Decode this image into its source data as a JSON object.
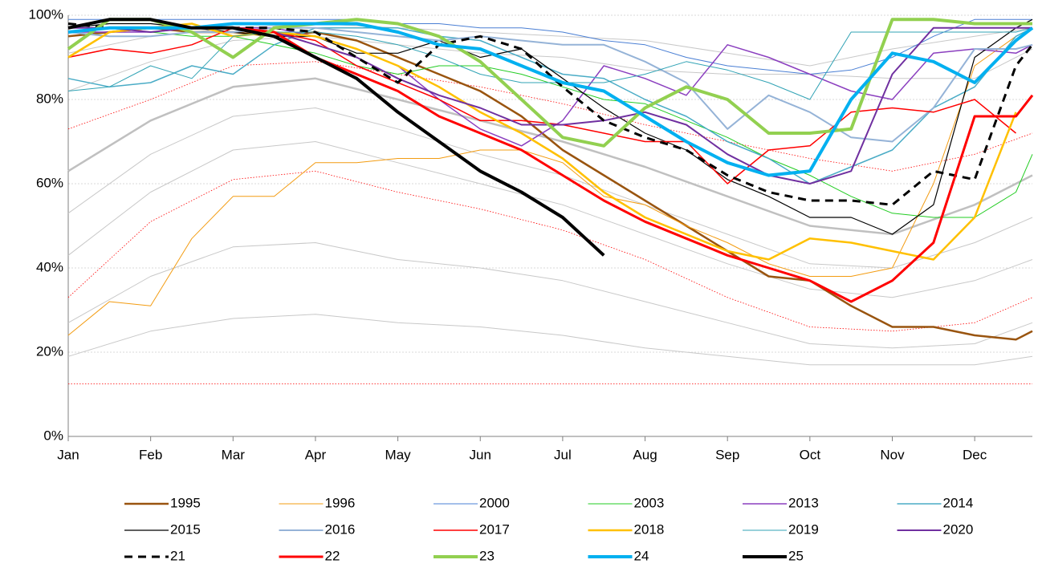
{
  "chart_data": {
    "type": "line",
    "x": [
      0,
      0.5,
      1,
      1.5,
      2,
      2.5,
      3,
      3.5,
      4,
      4.5,
      5,
      5.5,
      6,
      6.5,
      7,
      7.5,
      8,
      8.5,
      9,
      9.5,
      10,
      10.5,
      11,
      11.5,
      11.7
    ],
    "xlim": [
      0,
      11.7
    ],
    "xticks": [
      {
        "value": 0,
        "label": "Jan"
      },
      {
        "value": 1,
        "label": "Feb"
      },
      {
        "value": 2,
        "label": "Mar"
      },
      {
        "value": 3,
        "label": "Apr"
      },
      {
        "value": 4,
        "label": "May"
      },
      {
        "value": 5,
        "label": "Jun"
      },
      {
        "value": 6,
        "label": "Jul"
      },
      {
        "value": 7,
        "label": "Aug"
      },
      {
        "value": 8,
        "label": "Sep"
      },
      {
        "value": 9,
        "label": "Oct"
      },
      {
        "value": 10,
        "label": "Nov"
      },
      {
        "value": 11,
        "label": "Dec"
      }
    ],
    "ylim": [
      0,
      100
    ],
    "yticks": [
      {
        "value": 0,
        "label": "0%"
      },
      {
        "value": 20,
        "label": "20%"
      },
      {
        "value": 40,
        "label": "40%"
      },
      {
        "value": 60,
        "label": "60%"
      },
      {
        "value": 80,
        "label": "80%"
      },
      {
        "value": 100,
        "label": "100%"
      }
    ],
    "grid": true,
    "legend": "bottom",
    "series": [
      {
        "color": "#c8c8c8",
        "width": 1,
        "x": [
          0,
          1,
          2,
          3,
          4,
          5,
          6,
          7,
          8,
          9,
          10,
          11,
          11.7
        ],
        "values": [
          91,
          95,
          97,
          98,
          97,
          96,
          95,
          94,
          91,
          88,
          92,
          95,
          97
        ]
      },
      {
        "color": "#c8c8c8",
        "width": 1,
        "x": [
          0,
          1,
          2,
          3,
          4,
          5,
          6,
          7,
          8,
          9,
          10,
          11,
          11.7
        ],
        "values": [
          82,
          89,
          94,
          95,
          93,
          91,
          90,
          87,
          86,
          86,
          85,
          85,
          92
        ]
      },
      {
        "color": "#c0c0c0",
        "width": 2.5,
        "x": [
          0,
          1,
          2,
          3,
          4,
          5,
          6,
          7,
          8,
          9,
          10,
          11,
          11.7
        ],
        "values": [
          63,
          75,
          83,
          85,
          80,
          75,
          70,
          64,
          57,
          50,
          48,
          55,
          62
        ]
      },
      {
        "color": "#c8c8c8",
        "width": 1,
        "x": [
          0,
          1,
          2,
          3,
          4,
          5,
          6,
          7,
          8,
          9,
          10,
          11,
          11.7
        ],
        "values": [
          53,
          67,
          76,
          78,
          73,
          67,
          62,
          55,
          48,
          41,
          40,
          46,
          52
        ]
      },
      {
        "color": "#c8c8c8",
        "width": 1,
        "x": [
          0,
          1,
          2,
          3,
          4,
          5,
          6,
          7,
          8,
          9,
          10,
          11,
          11.7
        ],
        "values": [
          43,
          58,
          68,
          70,
          65,
          60,
          55,
          48,
          41,
          35,
          33,
          37,
          42
        ]
      },
      {
        "color": "#c8c8c8",
        "width": 1,
        "x": [
          0,
          1,
          2,
          3,
          4,
          5,
          6,
          7,
          8,
          9,
          10,
          11,
          11.7
        ],
        "values": [
          27,
          38,
          45,
          46,
          42,
          40,
          37,
          32,
          27,
          22,
          21,
          22,
          27
        ]
      },
      {
        "color": "#c8c8c8",
        "width": 1,
        "x": [
          0,
          1,
          2,
          3,
          4,
          5,
          6,
          7,
          8,
          9,
          10,
          11,
          11.7
        ],
        "values": [
          19,
          25,
          28,
          29,
          27,
          26,
          24,
          21,
          19,
          17,
          17,
          17,
          19
        ]
      },
      {
        "color": "#ff0000",
        "width": 0.8,
        "dash": "1.5 2",
        "x": [
          0,
          1,
          2,
          3,
          4,
          5,
          6,
          7,
          8,
          9,
          10,
          11,
          11.7
        ],
        "values": [
          73,
          80,
          88,
          89,
          86,
          83,
          79,
          74,
          70,
          66,
          63,
          67,
          72
        ]
      },
      {
        "color": "#ff0000",
        "width": 0.8,
        "dash": "1.5 2",
        "x": [
          0,
          1,
          2,
          3,
          4,
          5,
          6,
          7,
          8,
          9,
          10,
          11,
          11.7
        ],
        "values": [
          33,
          51,
          61,
          63,
          58,
          54,
          49,
          42,
          33,
          26,
          25,
          27,
          33
        ]
      },
      {
        "color": "#ff0000",
        "width": 0.8,
        "dash": "1.5 2",
        "x": [
          0,
          11.7
        ],
        "values": [
          12.5,
          12.5
        ]
      },
      {
        "name": "1995",
        "color": "#99540f",
        "width": 2.5,
        "values": [
          95,
          96,
          97,
          96,
          96,
          95,
          96,
          94,
          90,
          86,
          82,
          76,
          68,
          62,
          56,
          50,
          44,
          38,
          37,
          31,
          26,
          26,
          24,
          23,
          25
        ]
      },
      {
        "name": "1996",
        "color": "#f39c12",
        "width": 1,
        "values": [
          24,
          32,
          31,
          47,
          57,
          57,
          65,
          65,
          66,
          66,
          68,
          68,
          65,
          57,
          55,
          50,
          46,
          41,
          38,
          38,
          40,
          60,
          88,
          95,
          97
        ]
      },
      {
        "name": "2000",
        "color": "#4a7fd4",
        "width": 1,
        "values": [
          99,
          99,
          99,
          99,
          99,
          99,
          99,
          99,
          98,
          98,
          97,
          97,
          96,
          94,
          93,
          90,
          88,
          87,
          86,
          87,
          90,
          95,
          99,
          99,
          99
        ]
      },
      {
        "name": "2003",
        "color": "#22cc22",
        "width": 1,
        "values": [
          97,
          97,
          96,
          95,
          95,
          93,
          91,
          88,
          86,
          88,
          88,
          86,
          83,
          80,
          79,
          75,
          71,
          66,
          62,
          57,
          53,
          52,
          52,
          58,
          67
        ]
      },
      {
        "name": "2013",
        "color": "#8b3fbf",
        "width": 1.5,
        "values": [
          96,
          96,
          96,
          97,
          97,
          97,
          95,
          92,
          88,
          80,
          73,
          69,
          75,
          88,
          85,
          81,
          93,
          90,
          86,
          82,
          80,
          91,
          92,
          91,
          93
        ]
      },
      {
        "name": "2014",
        "color": "#4aacc6",
        "width": 1.5,
        "values": [
          85,
          83,
          84,
          88,
          86,
          93,
          97,
          97,
          97,
          95,
          94,
          90,
          86,
          85,
          80,
          76,
          70,
          66,
          60,
          64,
          68,
          78,
          83,
          95,
          97
        ]
      },
      {
        "name": "2015",
        "color": "#000000",
        "width": 1.2,
        "values": [
          97,
          98,
          98,
          97,
          96,
          95,
          95,
          91,
          91,
          94,
          90,
          92,
          85,
          78,
          72,
          68,
          61,
          57,
          52,
          52,
          48,
          55,
          90,
          97,
          99
        ]
      },
      {
        "name": "2016",
        "color": "#95b3d7",
        "width": 2,
        "values": [
          96,
          95,
          95,
          96,
          96,
          97,
          97,
          96,
          95,
          94,
          95,
          94,
          93,
          93,
          89,
          84,
          73,
          81,
          77,
          71,
          70,
          78,
          92,
          92,
          93
        ]
      },
      {
        "name": "2017",
        "color": "#ff0000",
        "width": 1.5,
        "values": [
          90,
          92,
          91,
          93,
          97,
          96,
          94,
          88,
          84,
          80,
          75,
          75,
          74,
          72,
          70,
          70,
          60,
          68,
          69,
          77,
          78,
          77,
          80,
          72,
          null
        ]
      },
      {
        "name": "2018",
        "color": "#ffc000",
        "width": 2.5,
        "values": [
          90,
          96,
          97,
          98,
          95,
          96,
          95,
          92,
          88,
          83,
          77,
          72,
          66,
          58,
          52,
          48,
          44,
          42,
          47,
          46,
          44,
          42,
          52,
          77,
          null
        ]
      },
      {
        "name": "2019",
        "color": "#31a3b5",
        "width": 1,
        "values": [
          82,
          83,
          88,
          85,
          95,
          96,
          96,
          95,
          93,
          90,
          86,
          84,
          84,
          84,
          86,
          89,
          87,
          84,
          80,
          96,
          96,
          96,
          96,
          96,
          97
        ]
      },
      {
        "name": "2020",
        "color": "#7030a0",
        "width": 2,
        "values": [
          97,
          97,
          96,
          97,
          97,
          96,
          93,
          90,
          85,
          81,
          78,
          74,
          74,
          75,
          77,
          74,
          67,
          62,
          60,
          63,
          86,
          97,
          97,
          97,
          97
        ]
      },
      {
        "name": "21",
        "color": "#000000",
        "width": 3,
        "dash": "10 7",
        "values": [
          98,
          97,
          97,
          97,
          97,
          97,
          96,
          90,
          84,
          93,
          95,
          92,
          83,
          75,
          71,
          68,
          62,
          58,
          56,
          56,
          55,
          63,
          61,
          88,
          93
        ]
      },
      {
        "name": "22",
        "color": "#ff0000",
        "width": 3,
        "values": [
          96,
          97,
          97,
          97,
          97,
          96,
          90,
          86,
          82,
          76,
          72,
          68,
          62,
          56,
          51,
          47,
          43,
          40,
          37,
          32,
          37,
          46,
          76,
          76,
          81
        ]
      },
      {
        "name": "23",
        "color": "#92d050",
        "width": 4,
        "values": [
          92,
          99,
          99,
          96,
          90,
          97,
          98,
          99,
          98,
          95,
          89,
          80,
          71,
          69,
          78,
          83,
          80,
          72,
          72,
          73,
          99,
          99,
          98,
          98,
          98
        ]
      },
      {
        "name": "24",
        "color": "#00b0f0",
        "width": 4,
        "values": [
          96,
          97,
          97,
          97,
          98,
          98,
          98,
          98,
          96,
          93,
          92,
          88,
          84,
          82,
          76,
          70,
          65,
          62,
          63,
          80,
          91,
          89,
          84,
          94,
          97
        ]
      },
      {
        "name": "25",
        "color": "#000000",
        "width": 4,
        "values": [
          97,
          99,
          99,
          97,
          97,
          95,
          90,
          85,
          77,
          70,
          63,
          58,
          52,
          43,
          null,
          null,
          null,
          null,
          null,
          null,
          null,
          null,
          null,
          null,
          null
        ]
      }
    ]
  }
}
